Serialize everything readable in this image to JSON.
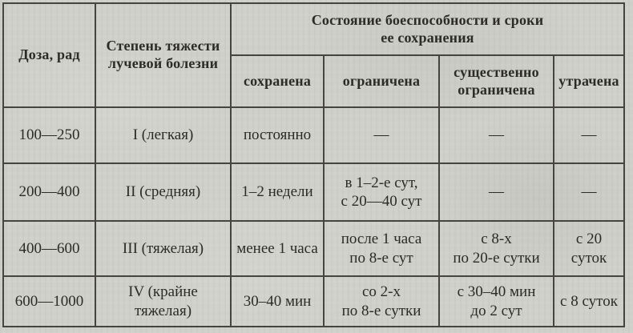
{
  "table": {
    "header": {
      "dose": "Доза, рад",
      "severity": "Степень тяжести\nлучевой болезни",
      "combat_state": "Состояние боеспособности и сроки\nее сохранения",
      "sub": [
        "сохранена",
        "ограничена",
        "существенно\nограничена",
        "утрачена"
      ]
    },
    "rows": [
      {
        "dose": "100—250",
        "severity": "I (легкая)",
        "preserved": "постоянно",
        "limited": "—",
        "substantially_limited": "—",
        "lost": "—"
      },
      {
        "dose": "200—400",
        "severity": "II (средняя)",
        "preserved": "1–2 недели",
        "limited": "в 1–2-е сут,\nс 20—40 сут",
        "substantially_limited": "—",
        "lost": "—"
      },
      {
        "dose": "400—600",
        "severity": "III (тяжелая)",
        "preserved": "менее 1 часа",
        "limited": "после 1 часа\nпо 8-е сут",
        "substantially_limited": "с 8-х\nпо 20-е сутки",
        "lost": "с 20 суток"
      },
      {
        "dose": "600—1000",
        "severity": "IV (крайне\nтяжелая)",
        "preserved": "30–40 мин",
        "limited": "со 2-х\nпо 8-е сутки",
        "substantially_limited": "с 30–40 мин\nдо 2 сут",
        "lost": "с 8 суток"
      }
    ]
  },
  "colors": {
    "paper": "#cfd0ca",
    "border": "#45443e",
    "text": "#2c2b26"
  }
}
